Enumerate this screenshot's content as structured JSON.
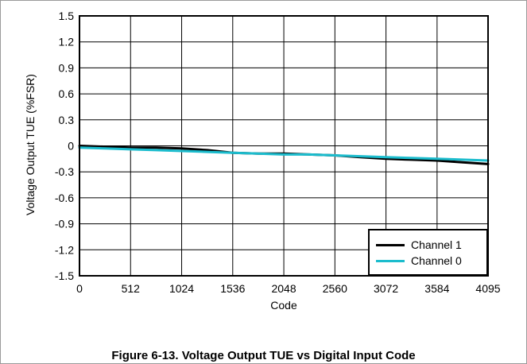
{
  "chart_data": {
    "type": "line",
    "title": "",
    "xlabel": "Code",
    "ylabel": "Voltage Output TUE (%FSR)",
    "xlim": [
      0,
      4095
    ],
    "ylim": [
      -1.5,
      1.5
    ],
    "x_ticks": [
      "0",
      "512",
      "1024",
      "1536",
      "2048",
      "2560",
      "3072",
      "3584",
      "4095"
    ],
    "x_tick_values": [
      0,
      512,
      1024,
      1536,
      2048,
      2560,
      3072,
      3584,
      4095
    ],
    "y_ticks": [
      "1.5",
      "1.2",
      "0.9",
      "0.6",
      "0.3",
      "0",
      "-0.3",
      "-0.6",
      "-0.9",
      "-1.2",
      "-1.5"
    ],
    "y_tick_values": [
      1.5,
      1.2,
      0.9,
      0.6,
      0.3,
      0,
      -0.3,
      -0.6,
      -0.9,
      -1.2,
      -1.5
    ],
    "grid": true,
    "legend_position": "bottom-right",
    "series": [
      {
        "name": "Channel 1",
        "color": "#000000",
        "x": [
          0,
          256,
          512,
          768,
          1024,
          1280,
          1536,
          1792,
          2048,
          2304,
          2560,
          2816,
          3072,
          3328,
          3584,
          3840,
          4095
        ],
        "y": [
          0.0,
          -0.01,
          -0.02,
          -0.02,
          -0.03,
          -0.05,
          -0.08,
          -0.09,
          -0.09,
          -0.1,
          -0.11,
          -0.13,
          -0.15,
          -0.16,
          -0.17,
          -0.19,
          -0.21
        ]
      },
      {
        "name": "Channel 0",
        "color": "#1bbccd",
        "x": [
          0,
          256,
          512,
          768,
          1024,
          1280,
          1536,
          1792,
          2048,
          2304,
          2560,
          2816,
          3072,
          3328,
          3584,
          3840,
          4095
        ],
        "y": [
          -0.02,
          -0.03,
          -0.04,
          -0.05,
          -0.06,
          -0.07,
          -0.08,
          -0.09,
          -0.1,
          -0.1,
          -0.11,
          -0.12,
          -0.13,
          -0.14,
          -0.15,
          -0.16,
          -0.17
        ]
      }
    ]
  },
  "caption": "Figure 6-13. Voltage Output TUE vs Digital Input Code"
}
